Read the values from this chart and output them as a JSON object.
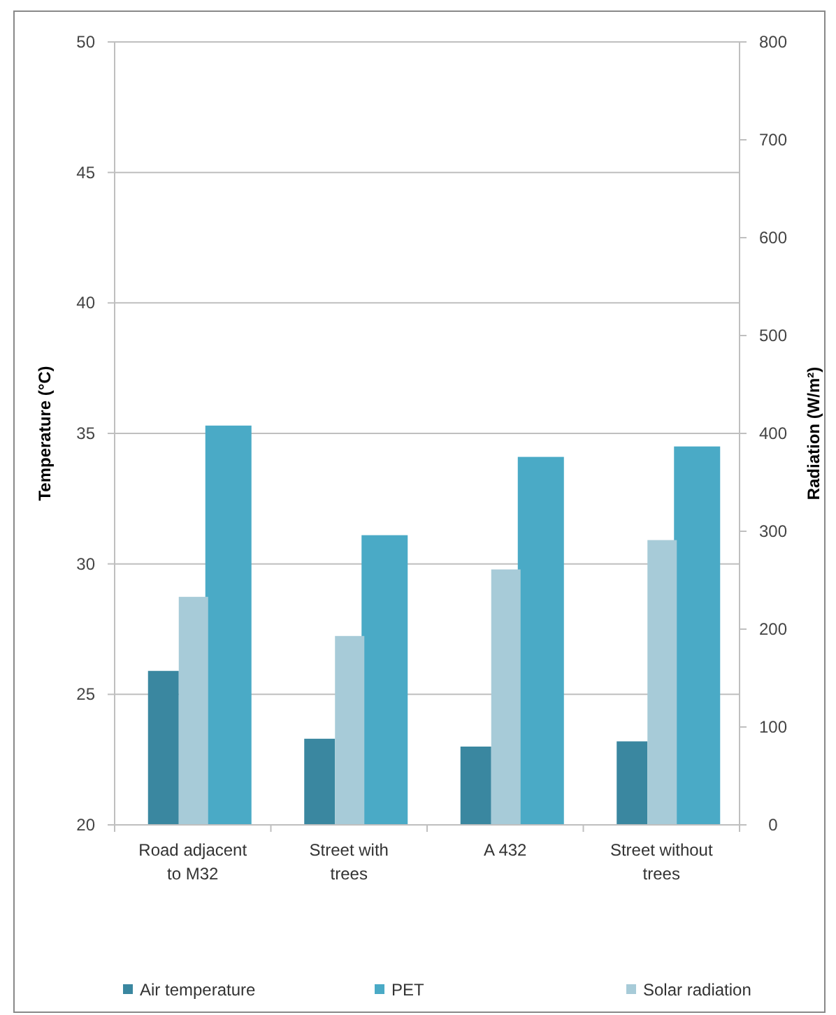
{
  "chart_data": {
    "type": "bar",
    "categories": [
      "Road adjacent to M32",
      "Street with trees",
      "A 432",
      "Street without trees"
    ],
    "ylabel": "Temperature (°C)",
    "y2label": "Radiation (W/m²)",
    "ylim": [
      20,
      50
    ],
    "yticks": [
      20,
      25,
      30,
      35,
      40,
      45,
      50
    ],
    "y2lim": [
      0,
      800
    ],
    "y2ticks": [
      0,
      100,
      200,
      300,
      400,
      500,
      600,
      700,
      800
    ],
    "series": [
      {
        "name": "Air temperature",
        "color": "#3a87a0",
        "values": [
          25.9,
          23.3,
          23.0,
          23.2
        ]
      },
      {
        "name": "PET",
        "color": "#4aaac6",
        "values": [
          35.3,
          31.1,
          34.1,
          34.5
        ]
      },
      {
        "name": "Solar radiation",
        "color": "#a7cbd8",
        "values": [
          233,
          193,
          261,
          291
        ],
        "axis": "y2"
      }
    ],
    "grid": "y",
    "legend": "bottom"
  }
}
